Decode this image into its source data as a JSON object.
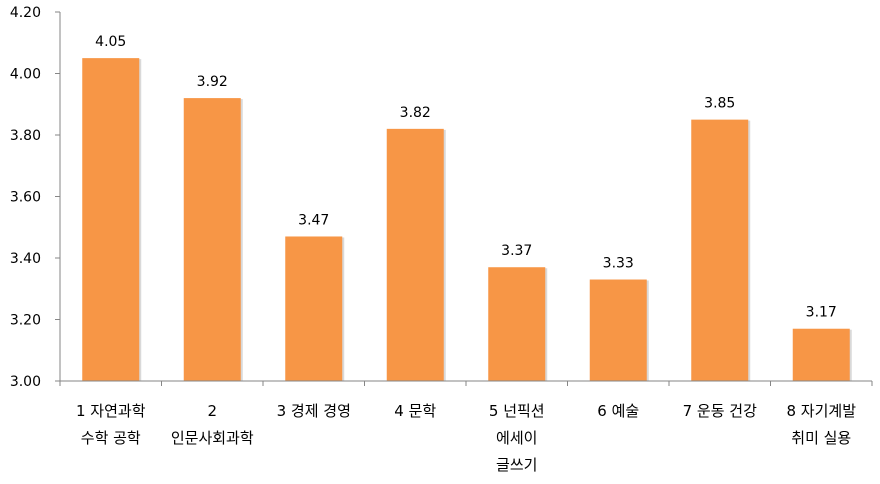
{
  "chart_data": {
    "type": "bar",
    "categories": [
      [
        "1 자연과학",
        "수학 공학"
      ],
      [
        "2",
        "인문사회과학"
      ],
      [
        "3 경제 경영"
      ],
      [
        "4 문학"
      ],
      [
        "5 넌픽션",
        "에세이",
        "글쓰기"
      ],
      [
        "6 예술"
      ],
      [
        "7 운동 건강"
      ],
      [
        "8 자기계발",
        "취미 실용"
      ]
    ],
    "values": [
      4.05,
      3.92,
      3.47,
      3.82,
      3.37,
      3.33,
      3.85,
      3.17
    ],
    "data_labels": [
      "4.05",
      "3.92",
      "3.47",
      "3.82",
      "3.37",
      "3.33",
      "3.85",
      "3.17"
    ],
    "ylim": [
      3.0,
      4.2
    ],
    "yticks": [
      "3.00",
      "3.20",
      "3.40",
      "3.60",
      "3.80",
      "4.00",
      "4.20"
    ],
    "grid": false,
    "legend": "none",
    "bar_color": "#F79646",
    "axis_color": "#868686"
  }
}
